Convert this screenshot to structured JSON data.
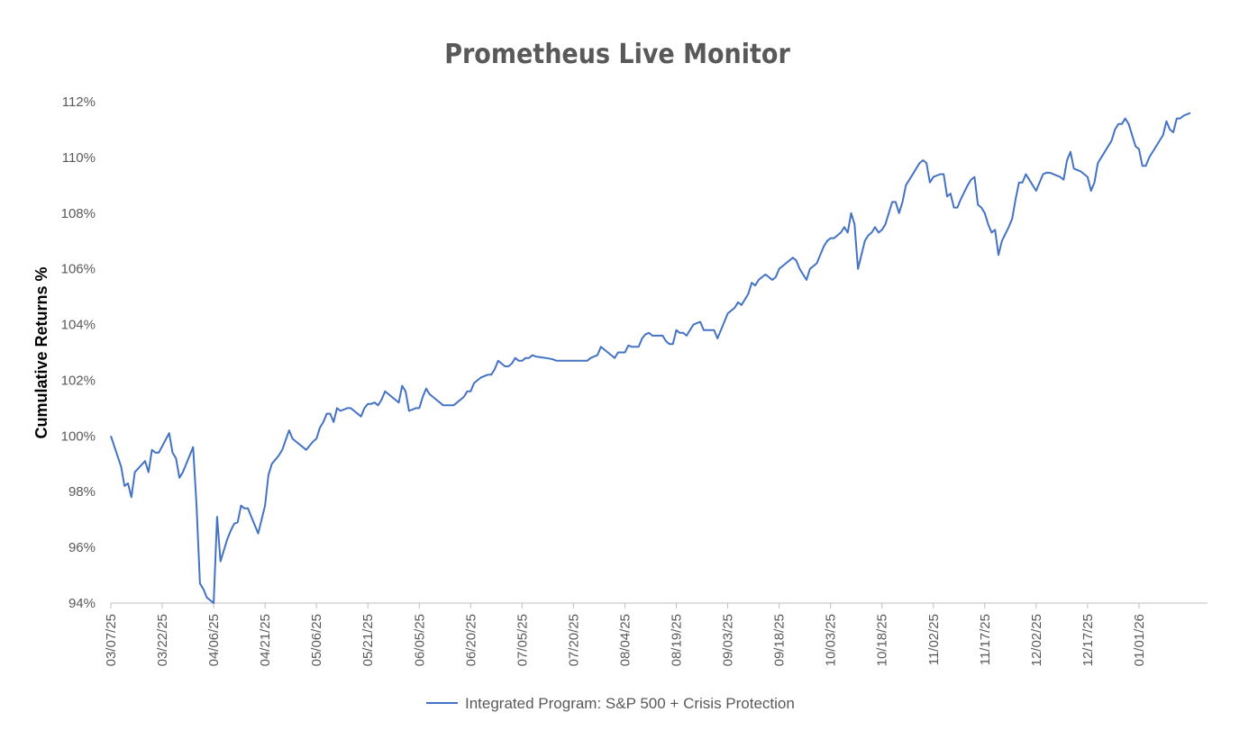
{
  "chart_data": {
    "type": "line",
    "title": "Prometheus Live Monitor",
    "ylabel": "Cumulative Returns %",
    "xlabel": "",
    "ylim": [
      94,
      112
    ],
    "yticks": [
      94,
      96,
      98,
      100,
      102,
      104,
      106,
      108,
      110,
      112
    ],
    "ytick_suffix": "%",
    "xlim": [
      "2025-03-07",
      "2026-01-21"
    ],
    "x_tick_labels": [
      "03/07/25",
      "03/22/25",
      "04/06/25",
      "04/21/25",
      "05/06/25",
      "05/21/25",
      "06/05/25",
      "06/20/25",
      "07/05/25",
      "07/20/25",
      "08/04/25",
      "08/19/25",
      "09/03/25",
      "09/18/25",
      "10/03/25",
      "10/18/25",
      "11/02/25",
      "11/17/25",
      "12/02/25",
      "12/17/25",
      "01/01/26"
    ],
    "grid": false,
    "legend_position": "bottom-center",
    "series": [
      {
        "name": "Integrated Program: S&P 500 + Crisis Protection",
        "color": "#4472C4",
        "points": [
          [
            "2025-03-07",
            100.0
          ],
          [
            "2025-03-10",
            98.9
          ],
          [
            "2025-03-11",
            98.2
          ],
          [
            "2025-03-12",
            98.3
          ],
          [
            "2025-03-13",
            97.8
          ],
          [
            "2025-03-14",
            98.7
          ],
          [
            "2025-03-17",
            99.1
          ],
          [
            "2025-03-18",
            98.7
          ],
          [
            "2025-03-19",
            99.5
          ],
          [
            "2025-03-20",
            99.4
          ],
          [
            "2025-03-21",
            99.4
          ],
          [
            "2025-03-24",
            100.1
          ],
          [
            "2025-03-25",
            99.4
          ],
          [
            "2025-03-26",
            99.2
          ],
          [
            "2025-03-27",
            98.5
          ],
          [
            "2025-03-28",
            98.7
          ],
          [
            "2025-03-31",
            99.6
          ],
          [
            "2025-04-01",
            97.5
          ],
          [
            "2025-04-02",
            94.7
          ],
          [
            "2025-04-03",
            94.5
          ],
          [
            "2025-04-04",
            94.2
          ],
          [
            "2025-04-05",
            94.1
          ],
          [
            "2025-04-06",
            93.8
          ],
          [
            "2025-04-07",
            97.1
          ],
          [
            "2025-04-08",
            95.5
          ],
          [
            "2025-04-09",
            95.9
          ],
          [
            "2025-04-10",
            96.3
          ],
          [
            "2025-04-11",
            96.6
          ],
          [
            "2025-04-12",
            96.85
          ],
          [
            "2025-04-13",
            96.9
          ],
          [
            "2025-04-14",
            97.5
          ],
          [
            "2025-04-15",
            97.4
          ],
          [
            "2025-04-16",
            97.4
          ],
          [
            "2025-04-17",
            97.1
          ],
          [
            "2025-04-19",
            96.5
          ],
          [
            "2025-04-21",
            97.5
          ],
          [
            "2025-04-22",
            98.6
          ],
          [
            "2025-04-23",
            99.0
          ],
          [
            "2025-04-25",
            99.3
          ],
          [
            "2025-04-26",
            99.5
          ],
          [
            "2025-04-28",
            100.2
          ],
          [
            "2025-04-29",
            99.9
          ],
          [
            "2025-04-30",
            99.8
          ],
          [
            "2025-05-02",
            99.6
          ],
          [
            "2025-05-03",
            99.5
          ],
          [
            "2025-05-05",
            99.8
          ],
          [
            "2025-05-06",
            99.9
          ],
          [
            "2025-05-07",
            100.3
          ],
          [
            "2025-05-08",
            100.5
          ],
          [
            "2025-05-09",
            100.8
          ],
          [
            "2025-05-10",
            100.8
          ],
          [
            "2025-05-11",
            100.5
          ],
          [
            "2025-05-12",
            101.0
          ],
          [
            "2025-05-13",
            100.9
          ],
          [
            "2025-05-15",
            101.0
          ],
          [
            "2025-05-16",
            101.0
          ],
          [
            "2025-05-17",
            100.9
          ],
          [
            "2025-05-19",
            100.7
          ],
          [
            "2025-05-20",
            101.0
          ],
          [
            "2025-05-21",
            101.15
          ],
          [
            "2025-05-22",
            101.15
          ],
          [
            "2025-05-23",
            101.2
          ],
          [
            "2025-05-24",
            101.1
          ],
          [
            "2025-05-25",
            101.3
          ],
          [
            "2025-05-26",
            101.6
          ],
          [
            "2025-05-27",
            101.5
          ],
          [
            "2025-05-28",
            101.4
          ],
          [
            "2025-05-30",
            101.2
          ],
          [
            "2025-05-31",
            101.8
          ],
          [
            "2025-06-01",
            101.6
          ],
          [
            "2025-06-02",
            100.9
          ],
          [
            "2025-06-04",
            101.0
          ],
          [
            "2025-06-05",
            101.0
          ],
          [
            "2025-06-06",
            101.4
          ],
          [
            "2025-06-07",
            101.7
          ],
          [
            "2025-06-08",
            101.5
          ],
          [
            "2025-06-10",
            101.3
          ],
          [
            "2025-06-11",
            101.2
          ],
          [
            "2025-06-12",
            101.1
          ],
          [
            "2025-06-15",
            101.1
          ],
          [
            "2025-06-17",
            101.3
          ],
          [
            "2025-06-18",
            101.4
          ],
          [
            "2025-06-19",
            101.6
          ],
          [
            "2025-06-20",
            101.6
          ],
          [
            "2025-06-21",
            101.9
          ],
          [
            "2025-06-23",
            102.1
          ],
          [
            "2025-06-24",
            102.15
          ],
          [
            "2025-06-25",
            102.2
          ],
          [
            "2025-06-26",
            102.2
          ],
          [
            "2025-06-27",
            102.4
          ],
          [
            "2025-06-28",
            102.7
          ],
          [
            "2025-06-29",
            102.6
          ],
          [
            "2025-06-30",
            102.5
          ],
          [
            "2025-07-01",
            102.5
          ],
          [
            "2025-07-02",
            102.6
          ],
          [
            "2025-07-03",
            102.8
          ],
          [
            "2025-07-04",
            102.7
          ],
          [
            "2025-07-05",
            102.7
          ],
          [
            "2025-07-06",
            102.8
          ],
          [
            "2025-07-07",
            102.8
          ],
          [
            "2025-07-08",
            102.9
          ],
          [
            "2025-07-09",
            102.85
          ],
          [
            "2025-07-12",
            102.8
          ],
          [
            "2025-07-14",
            102.75
          ],
          [
            "2025-07-15",
            102.7
          ],
          [
            "2025-07-20",
            102.7
          ],
          [
            "2025-07-22",
            102.7
          ],
          [
            "2025-07-24",
            102.7
          ],
          [
            "2025-07-25",
            102.8
          ],
          [
            "2025-07-27",
            102.9
          ],
          [
            "2025-07-28",
            103.2
          ],
          [
            "2025-07-29",
            103.1
          ],
          [
            "2025-07-31",
            102.9
          ],
          [
            "2025-08-01",
            102.8
          ],
          [
            "2025-08-02",
            103.0
          ],
          [
            "2025-08-04",
            103.0
          ],
          [
            "2025-08-05",
            103.25
          ],
          [
            "2025-08-06",
            103.2
          ],
          [
            "2025-08-08",
            103.2
          ],
          [
            "2025-08-09",
            103.5
          ],
          [
            "2025-08-10",
            103.65
          ],
          [
            "2025-08-11",
            103.7
          ],
          [
            "2025-08-12",
            103.6
          ],
          [
            "2025-08-13",
            103.6
          ],
          [
            "2025-08-15",
            103.6
          ],
          [
            "2025-08-16",
            103.4
          ],
          [
            "2025-08-17",
            103.3
          ],
          [
            "2025-08-18",
            103.3
          ],
          [
            "2025-08-19",
            103.8
          ],
          [
            "2025-08-20",
            103.7
          ],
          [
            "2025-08-21",
            103.7
          ],
          [
            "2025-08-22",
            103.6
          ],
          [
            "2025-08-23",
            103.8
          ],
          [
            "2025-08-24",
            104.0
          ],
          [
            "2025-08-26",
            104.1
          ],
          [
            "2025-08-27",
            103.8
          ],
          [
            "2025-08-28",
            103.8
          ],
          [
            "2025-08-30",
            103.8
          ],
          [
            "2025-08-31",
            103.5
          ],
          [
            "2025-09-01",
            103.8
          ],
          [
            "2025-09-03",
            104.4
          ],
          [
            "2025-09-04",
            104.5
          ],
          [
            "2025-09-05",
            104.6
          ],
          [
            "2025-09-06",
            104.8
          ],
          [
            "2025-09-07",
            104.7
          ],
          [
            "2025-09-08",
            104.9
          ],
          [
            "2025-09-09",
            105.1
          ],
          [
            "2025-09-10",
            105.5
          ],
          [
            "2025-09-11",
            105.4
          ],
          [
            "2025-09-12",
            105.6
          ],
          [
            "2025-09-13",
            105.7
          ],
          [
            "2025-09-14",
            105.8
          ],
          [
            "2025-09-15",
            105.7
          ],
          [
            "2025-09-16",
            105.6
          ],
          [
            "2025-09-17",
            105.7
          ],
          [
            "2025-09-18",
            106.0
          ],
          [
            "2025-09-19",
            106.1
          ],
          [
            "2025-09-20",
            106.2
          ],
          [
            "2025-09-21",
            106.3
          ],
          [
            "2025-09-22",
            106.4
          ],
          [
            "2025-09-23",
            106.3
          ],
          [
            "2025-09-24",
            106.0
          ],
          [
            "2025-09-25",
            105.8
          ],
          [
            "2025-09-26",
            105.6
          ],
          [
            "2025-09-27",
            106.0
          ],
          [
            "2025-09-28",
            106.1
          ],
          [
            "2025-09-29",
            106.2
          ],
          [
            "2025-09-30",
            106.5
          ],
          [
            "2025-10-01",
            106.8
          ],
          [
            "2025-10-02",
            107.0
          ],
          [
            "2025-10-03",
            107.1
          ],
          [
            "2025-10-04",
            107.1
          ],
          [
            "2025-10-05",
            107.2
          ],
          [
            "2025-10-06",
            107.3
          ],
          [
            "2025-10-07",
            107.5
          ],
          [
            "2025-10-08",
            107.3
          ],
          [
            "2025-10-09",
            108.0
          ],
          [
            "2025-10-10",
            107.6
          ],
          [
            "2025-10-11",
            106.0
          ],
          [
            "2025-10-12",
            106.5
          ],
          [
            "2025-10-13",
            107.0
          ],
          [
            "2025-10-14",
            107.2
          ],
          [
            "2025-10-15",
            107.3
          ],
          [
            "2025-10-16",
            107.5
          ],
          [
            "2025-10-17",
            107.3
          ],
          [
            "2025-10-18",
            107.4
          ],
          [
            "2025-10-19",
            107.6
          ],
          [
            "2025-10-20",
            108.0
          ],
          [
            "2025-10-21",
            108.4
          ],
          [
            "2025-10-22",
            108.4
          ],
          [
            "2025-10-23",
            108.0
          ],
          [
            "2025-10-24",
            108.4
          ],
          [
            "2025-10-25",
            109.0
          ],
          [
            "2025-10-28",
            109.6
          ],
          [
            "2025-10-29",
            109.8
          ],
          [
            "2025-10-30",
            109.9
          ],
          [
            "2025-10-31",
            109.8
          ],
          [
            "2025-11-01",
            109.1
          ],
          [
            "2025-11-02",
            109.3
          ],
          [
            "2025-11-04",
            109.4
          ],
          [
            "2025-11-05",
            109.4
          ],
          [
            "2025-11-06",
            108.6
          ],
          [
            "2025-11-07",
            108.7
          ],
          [
            "2025-11-08",
            108.2
          ],
          [
            "2025-11-09",
            108.2
          ],
          [
            "2025-11-10",
            108.5
          ],
          [
            "2025-11-12",
            109.0
          ],
          [
            "2025-11-13",
            109.2
          ],
          [
            "2025-11-14",
            109.3
          ],
          [
            "2025-11-15",
            108.3
          ],
          [
            "2025-11-16",
            108.2
          ],
          [
            "2025-11-17",
            108.0
          ],
          [
            "2025-11-18",
            107.6
          ],
          [
            "2025-11-19",
            107.3
          ],
          [
            "2025-11-20",
            107.4
          ],
          [
            "2025-11-21",
            106.5
          ],
          [
            "2025-11-22",
            107.0
          ],
          [
            "2025-11-24",
            107.5
          ],
          [
            "2025-11-25",
            107.8
          ],
          [
            "2025-11-26",
            108.5
          ],
          [
            "2025-11-27",
            109.1
          ],
          [
            "2025-11-28",
            109.1
          ],
          [
            "2025-11-29",
            109.4
          ],
          [
            "2025-12-01",
            109.0
          ],
          [
            "2025-12-02",
            108.8
          ],
          [
            "2025-12-03",
            109.1
          ],
          [
            "2025-12-04",
            109.4
          ],
          [
            "2025-12-05",
            109.45
          ],
          [
            "2025-12-06",
            109.45
          ],
          [
            "2025-12-09",
            109.3
          ],
          [
            "2025-12-10",
            109.2
          ],
          [
            "2025-12-11",
            109.9
          ],
          [
            "2025-12-12",
            110.2
          ],
          [
            "2025-12-13",
            109.6
          ],
          [
            "2025-12-15",
            109.5
          ],
          [
            "2025-12-16",
            109.4
          ],
          [
            "2025-12-17",
            109.3
          ],
          [
            "2025-12-18",
            108.8
          ],
          [
            "2025-12-19",
            109.1
          ],
          [
            "2025-12-20",
            109.8
          ],
          [
            "2025-12-22",
            110.2
          ],
          [
            "2025-12-24",
            110.6
          ],
          [
            "2025-12-25",
            111.0
          ],
          [
            "2025-12-26",
            111.2
          ],
          [
            "2025-12-27",
            111.2
          ],
          [
            "2025-12-28",
            111.4
          ],
          [
            "2025-12-29",
            111.2
          ],
          [
            "2025-12-30",
            110.8
          ],
          [
            "2025-12-31",
            110.4
          ],
          [
            "2026-01-01",
            110.3
          ],
          [
            "2026-01-02",
            109.7
          ],
          [
            "2026-01-03",
            109.7
          ],
          [
            "2026-01-04",
            110.0
          ],
          [
            "2026-01-06",
            110.4
          ],
          [
            "2026-01-08",
            110.8
          ],
          [
            "2026-01-09",
            111.3
          ],
          [
            "2026-01-10",
            111.0
          ],
          [
            "2026-01-11",
            110.9
          ],
          [
            "2026-01-12",
            111.4
          ],
          [
            "2026-01-13",
            111.4
          ],
          [
            "2026-01-14",
            111.5
          ],
          [
            "2026-01-16",
            111.6
          ]
        ]
      }
    ]
  }
}
